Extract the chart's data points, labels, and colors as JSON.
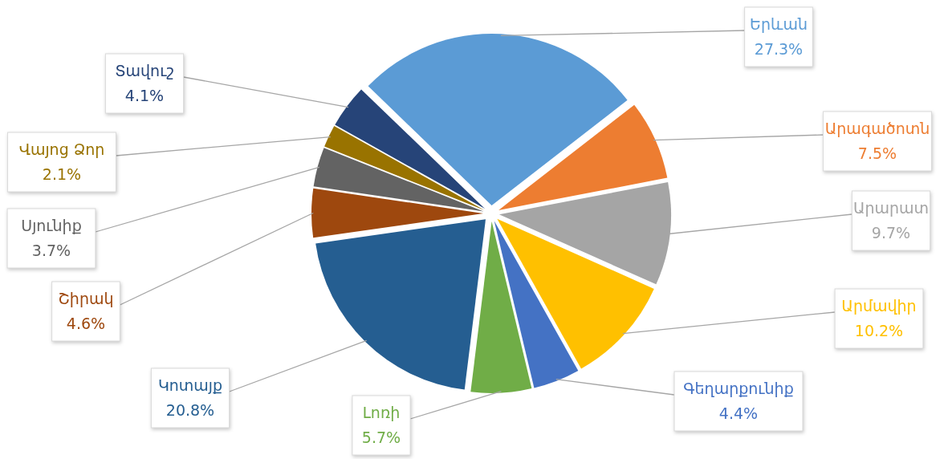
{
  "chart_data": {
    "type": "pie",
    "categories": [
      "Երևան",
      "Արագածոտն",
      "Արարատ",
      "Արմավիր",
      "Գեղարքունիք",
      "Լոռի",
      "Կոտայք",
      "Շիրակ",
      "Սյունիք",
      "Վայոց Ձոր",
      "Տավուշ"
    ],
    "values": [
      27.3,
      7.5,
      9.7,
      10.2,
      4.4,
      5.7,
      20.8,
      4.6,
      3.7,
      2.1,
      4.1
    ],
    "colors": [
      "#5b9bd5",
      "#ed7d31",
      "#a5a5a5",
      "#ffc000",
      "#4472c4",
      "#70ad47",
      "#255e91",
      "#9e480e",
      "#636363",
      "#997300",
      "#264478"
    ],
    "value_labels": [
      "27.3%",
      "7.5%",
      "9.7%",
      "10.2%",
      "4.4%",
      "5.7%",
      "20.8%",
      "4.6%",
      "3.7%",
      "2.1%",
      "4.1%"
    ]
  }
}
